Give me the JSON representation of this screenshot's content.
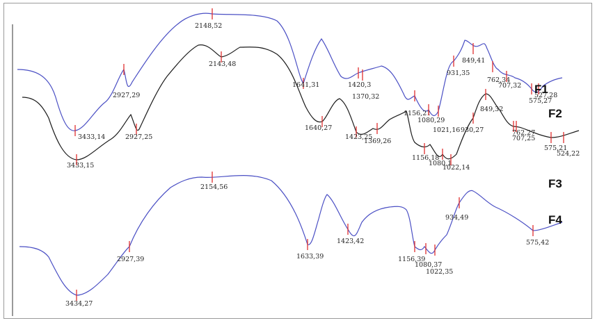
{
  "chart_data": {
    "type": "line",
    "title": "",
    "xlabel": "",
    "ylabel": "",
    "grid": false,
    "series": [
      {
        "name": "F1",
        "color": "#4a4fc4",
        "peaks": [
          "3433,14",
          "2927,29",
          "2148,52",
          "1641,31",
          "1420,3",
          "1370,32",
          "1156,21",
          "1080,29",
          "1021,16",
          "931,35",
          "849,41",
          "762,34",
          "707,32",
          "575,27",
          "527,28"
        ]
      },
      {
        "name": "F2",
        "color": "#222222",
        "peaks": [
          "3433,15",
          "2927,25",
          "2143,48",
          "1640,27",
          "1423,25",
          "1369,26",
          "1156,18",
          "1080,1",
          "1022,14",
          "930,27",
          "849,32",
          "762,27",
          "707,25",
          "575,21",
          "524,22"
        ]
      },
      {
        "name": "F3",
        "color": "#4a4fc4",
        "peaks": []
      },
      {
        "name": "F4",
        "color": "#4a4fc4",
        "peaks": [
          "3434,27",
          "2927,39",
          "2154,56",
          "1633,39",
          "1423,42",
          "1156,39",
          "1080,37",
          "1022,35",
          "934,49",
          "575,42"
        ]
      }
    ]
  }
}
